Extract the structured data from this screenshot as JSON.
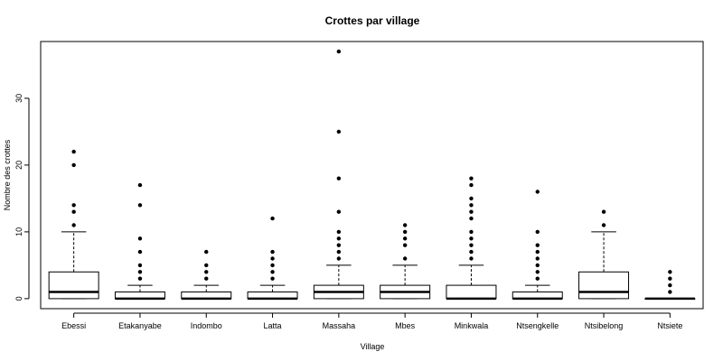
{
  "chart_data": {
    "type": "boxplot",
    "title": "Crottes par village",
    "xlabel": "Village",
    "ylabel": "Nombre des crottes",
    "ylim": [
      -1.5,
      38.5
    ],
    "yticks": [
      0,
      10,
      20,
      30
    ],
    "grid": false,
    "categories": [
      "Ebessi",
      "Etakanyabe",
      "Indombo",
      "Latta",
      "Massaha",
      "Mbes",
      "Minkwala",
      "Ntsengkelle",
      "Ntsibelong",
      "Ntsiete"
    ],
    "boxes": [
      {
        "category": "Ebessi",
        "whisker_low": 0,
        "q1": 0,
        "median": 1,
        "q3": 4,
        "whisker_high": 10,
        "outliers": [
          11,
          13,
          14,
          20,
          22
        ]
      },
      {
        "category": "Etakanyabe",
        "whisker_low": 0,
        "q1": 0,
        "median": 0,
        "q3": 1,
        "whisker_high": 2,
        "outliers": [
          3,
          4,
          5,
          7,
          9,
          14,
          17
        ]
      },
      {
        "category": "Indombo",
        "whisker_low": 0,
        "q1": 0,
        "median": 0,
        "q3": 1,
        "whisker_high": 2,
        "outliers": [
          3,
          4,
          5,
          7
        ]
      },
      {
        "category": "Latta",
        "whisker_low": 0,
        "q1": 0,
        "median": 0,
        "q3": 1,
        "whisker_high": 2,
        "outliers": [
          3,
          4,
          5,
          6,
          7,
          12
        ]
      },
      {
        "category": "Massaha",
        "whisker_low": 0,
        "q1": 0,
        "median": 1,
        "q3": 2,
        "whisker_high": 5,
        "outliers": [
          6,
          7,
          8,
          9,
          10,
          13,
          18,
          25,
          37
        ]
      },
      {
        "category": "Mbes",
        "whisker_low": 0,
        "q1": 0,
        "median": 1,
        "q3": 2,
        "whisker_high": 5,
        "outliers": [
          6,
          8,
          9,
          10,
          11
        ]
      },
      {
        "category": "Minkwala",
        "whisker_low": 0,
        "q1": 0,
        "median": 0,
        "q3": 2,
        "whisker_high": 5,
        "outliers": [
          6,
          7,
          8,
          9,
          10,
          12,
          13,
          14,
          15,
          17,
          18
        ]
      },
      {
        "category": "Ntsengkelle",
        "whisker_low": 0,
        "q1": 0,
        "median": 0,
        "q3": 1,
        "whisker_high": 2,
        "outliers": [
          3,
          4,
          5,
          6,
          7,
          8,
          10,
          16
        ]
      },
      {
        "category": "Ntsibelong",
        "whisker_low": 0,
        "q1": 0,
        "median": 1,
        "q3": 4,
        "whisker_high": 10,
        "outliers": [
          11,
          13
        ]
      },
      {
        "category": "Ntsiete",
        "whisker_low": 0,
        "q1": 0,
        "median": 0,
        "q3": 0,
        "whisker_high": 0,
        "outliers": [
          1,
          2,
          3,
          4
        ]
      }
    ]
  }
}
